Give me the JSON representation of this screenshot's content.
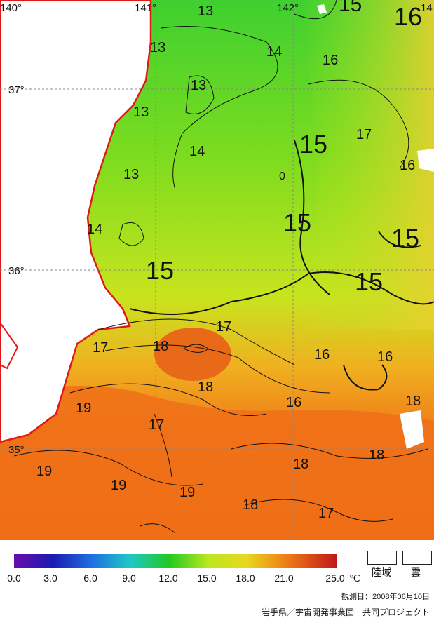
{
  "coords": {
    "lon": [
      "140°",
      "141°",
      "142°",
      "14"
    ],
    "lat": [
      "37°",
      "36°",
      "35°"
    ]
  },
  "contour_labels": [
    "13",
    "13",
    "13",
    "13",
    "13",
    "14",
    "14",
    "14",
    "15",
    "15",
    "15",
    "15",
    "15",
    "15",
    "16",
    "16",
    "16",
    "16",
    "16",
    "16",
    "17",
    "17",
    "17",
    "17",
    "17",
    "18",
    "18",
    "18",
    "18",
    "18",
    "18",
    "19",
    "19",
    "19",
    "19",
    "0"
  ],
  "legend": {
    "ticks": [
      "0.0",
      "3.0",
      "6.0",
      "9.0",
      "12.0",
      "15.0",
      "18.0",
      "21.0",
      "25.0"
    ],
    "unit": "℃",
    "land_label": "陸域",
    "cloud_label": "雲",
    "colors": [
      "#6a0dad",
      "#1a1ab0",
      "#1e6fe0",
      "#1ec8c8",
      "#22c822",
      "#b8e81e",
      "#e8d81e",
      "#f08018",
      "#c01818"
    ]
  },
  "observation_date": "観測日：2008年06月10日",
  "credit": "岩手県／宇宙開発事業団　共同プロジェクト"
}
